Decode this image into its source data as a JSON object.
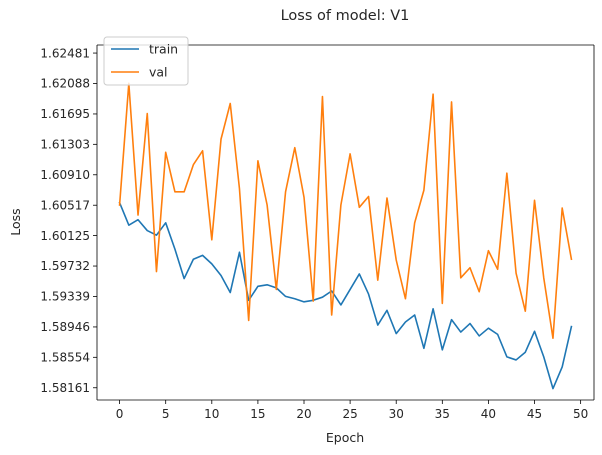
{
  "chart_data": {
    "type": "line",
    "title": "Loss of model: V1",
    "xlabel": "Epoch",
    "ylabel": "Loss",
    "xlim": [
      -2.45,
      51.45
    ],
    "ylim": [
      1.58003,
      1.62585
    ],
    "xticks": [
      0,
      5,
      10,
      15,
      20,
      25,
      30,
      35,
      40,
      45,
      50
    ],
    "yticks": [
      1.58161,
      1.58554,
      1.58946,
      1.59339,
      1.59732,
      1.60125,
      1.60517,
      1.6091,
      1.61303,
      1.61695,
      1.62088,
      1.62481
    ],
    "ytick_labels": [
      "1.58161",
      "1.58554",
      "1.58946",
      "1.59339",
      "1.59732",
      "1.60125",
      "1.60517",
      "1.60910",
      "1.61303",
      "1.61695",
      "1.62088",
      "1.62481"
    ],
    "grid": false,
    "legend_position": "top-left",
    "x": [
      0,
      1,
      2,
      3,
      4,
      5,
      6,
      7,
      8,
      9,
      10,
      11,
      12,
      13,
      14,
      15,
      16,
      17,
      18,
      19,
      20,
      21,
      22,
      23,
      24,
      25,
      26,
      27,
      28,
      29,
      30,
      31,
      32,
      33,
      34,
      35,
      36,
      37,
      38,
      39,
      40,
      41,
      42,
      43,
      44,
      45,
      46,
      47,
      48,
      49
    ],
    "series": [
      {
        "name": "train",
        "color": "#1f77b4",
        "values": [
          1.6055,
          1.6026,
          1.6033,
          1.6019,
          1.6013,
          1.6029,
          1.5995,
          1.5957,
          1.5982,
          1.5987,
          1.5976,
          1.5961,
          1.5939,
          1.5991,
          1.5929,
          1.5947,
          1.5949,
          1.5945,
          1.5934,
          1.5931,
          1.5927,
          1.5929,
          1.5933,
          1.5941,
          1.5923,
          1.5943,
          1.5963,
          1.5937,
          1.5897,
          1.5916,
          1.5886,
          1.5901,
          1.591,
          1.5867,
          1.5918,
          1.5865,
          1.5904,
          1.5888,
          1.5899,
          1.5883,
          1.5893,
          1.5885,
          1.5856,
          1.5852,
          1.5862,
          1.5889,
          1.5856,
          1.5815,
          1.5843,
          1.5895
        ]
      },
      {
        "name": "val",
        "color": "#ff7f0e",
        "values": [
          1.6052,
          1.6209,
          1.6039,
          1.617,
          1.5966,
          1.612,
          1.6069,
          1.6069,
          1.6104,
          1.6122,
          1.6007,
          1.6137,
          1.6183,
          1.6073,
          1.5903,
          1.6109,
          1.6052,
          1.5943,
          1.6069,
          1.6126,
          1.6062,
          1.5928,
          1.6192,
          1.591,
          1.6052,
          1.6118,
          1.6049,
          1.6063,
          1.5955,
          1.6061,
          1.5981,
          1.5931,
          1.6029,
          1.6071,
          1.6195,
          1.5925,
          1.6185,
          1.5958,
          1.5971,
          1.594,
          1.5993,
          1.5969,
          1.6093,
          1.5964,
          1.5915,
          1.6058,
          1.5958,
          1.588,
          1.6048,
          1.5982
        ]
      }
    ]
  }
}
